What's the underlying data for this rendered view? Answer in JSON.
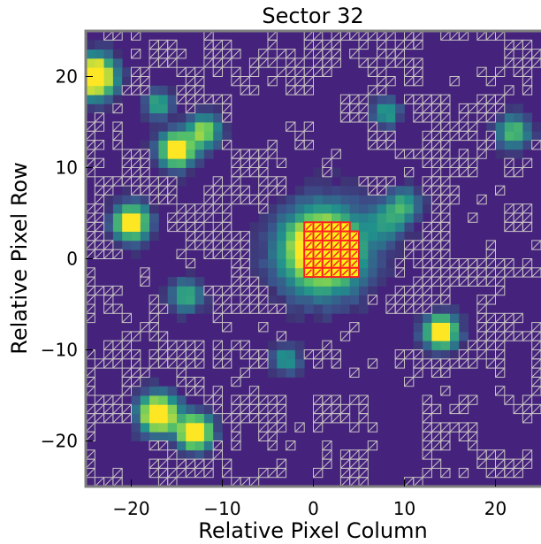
{
  "chart_data": {
    "type": "heatmap",
    "title": "Sector 32",
    "xlabel": "Relative Pixel Column",
    "ylabel": "Relative Pixel Row",
    "xlim": [
      -25,
      25
    ],
    "ylim": [
      -25,
      25
    ],
    "x_ticks": [
      -20,
      -10,
      0,
      10,
      20
    ],
    "y_ticks": [
      -20,
      -10,
      0,
      10,
      20
    ],
    "colormap": "viridis",
    "background_color": "#45237d",
    "hatch_color": "#c9c3c3",
    "aperture_color": "#ff1f1f",
    "aperture_fill": "#f7f316",
    "sources": [
      {
        "x": -24,
        "y": 20,
        "peak": 1.0,
        "sigma": 1.5
      },
      {
        "x": -20,
        "y": 4,
        "peak": 0.8,
        "sigma": 1.3
      },
      {
        "x": -15,
        "y": 12,
        "peak": 0.8,
        "sigma": 1.3
      },
      {
        "x": -12,
        "y": 14,
        "peak": 0.55,
        "sigma": 1.2
      },
      {
        "x": -17,
        "y": -17,
        "peak": 0.95,
        "sigma": 1.4
      },
      {
        "x": -13,
        "y": -19,
        "peak": 1.0,
        "sigma": 1.2
      },
      {
        "x": 1,
        "y": 1,
        "peak": 1.0,
        "sigma": 3.0
      },
      {
        "x": 14,
        "y": -8,
        "peak": 0.85,
        "sigma": 1.2
      },
      {
        "x": 8,
        "y": 4,
        "peak": 0.3,
        "sigma": 1.5
      },
      {
        "x": 10,
        "y": 6,
        "peak": 0.35,
        "sigma": 1.2
      },
      {
        "x": -14,
        "y": -4,
        "peak": 0.4,
        "sigma": 1.2
      },
      {
        "x": 22,
        "y": 14,
        "peak": 0.45,
        "sigma": 1.2
      },
      {
        "x": -17,
        "y": 17,
        "peak": 0.4,
        "sigma": 1.0
      },
      {
        "x": -3,
        "y": -11,
        "peak": 0.35,
        "sigma": 1.0
      },
      {
        "x": 8,
        "y": 16,
        "peak": 0.35,
        "sigma": 1.0
      }
    ],
    "aperture_pixels": [
      [
        -1,
        3
      ],
      [
        0,
        3
      ],
      [
        1,
        3
      ],
      [
        2,
        3
      ],
      [
        3,
        3
      ],
      [
        -1,
        2
      ],
      [
        0,
        2
      ],
      [
        1,
        2
      ],
      [
        2,
        2
      ],
      [
        3,
        2
      ],
      [
        4,
        2
      ],
      [
        -1,
        1
      ],
      [
        0,
        1
      ],
      [
        1,
        1
      ],
      [
        2,
        1
      ],
      [
        3,
        1
      ],
      [
        4,
        1
      ],
      [
        -1,
        0
      ],
      [
        0,
        0
      ],
      [
        1,
        0
      ],
      [
        2,
        0
      ],
      [
        3,
        0
      ],
      [
        4,
        0
      ],
      [
        -1,
        -1
      ],
      [
        0,
        -1
      ],
      [
        1,
        -1
      ],
      [
        2,
        -1
      ],
      [
        3,
        -1
      ],
      [
        4,
        -1
      ],
      [
        -1,
        -2
      ],
      [
        0,
        -2
      ],
      [
        1,
        -2
      ],
      [
        2,
        -2
      ],
      [
        3,
        -2
      ],
      [
        4,
        -2
      ]
    ]
  }
}
